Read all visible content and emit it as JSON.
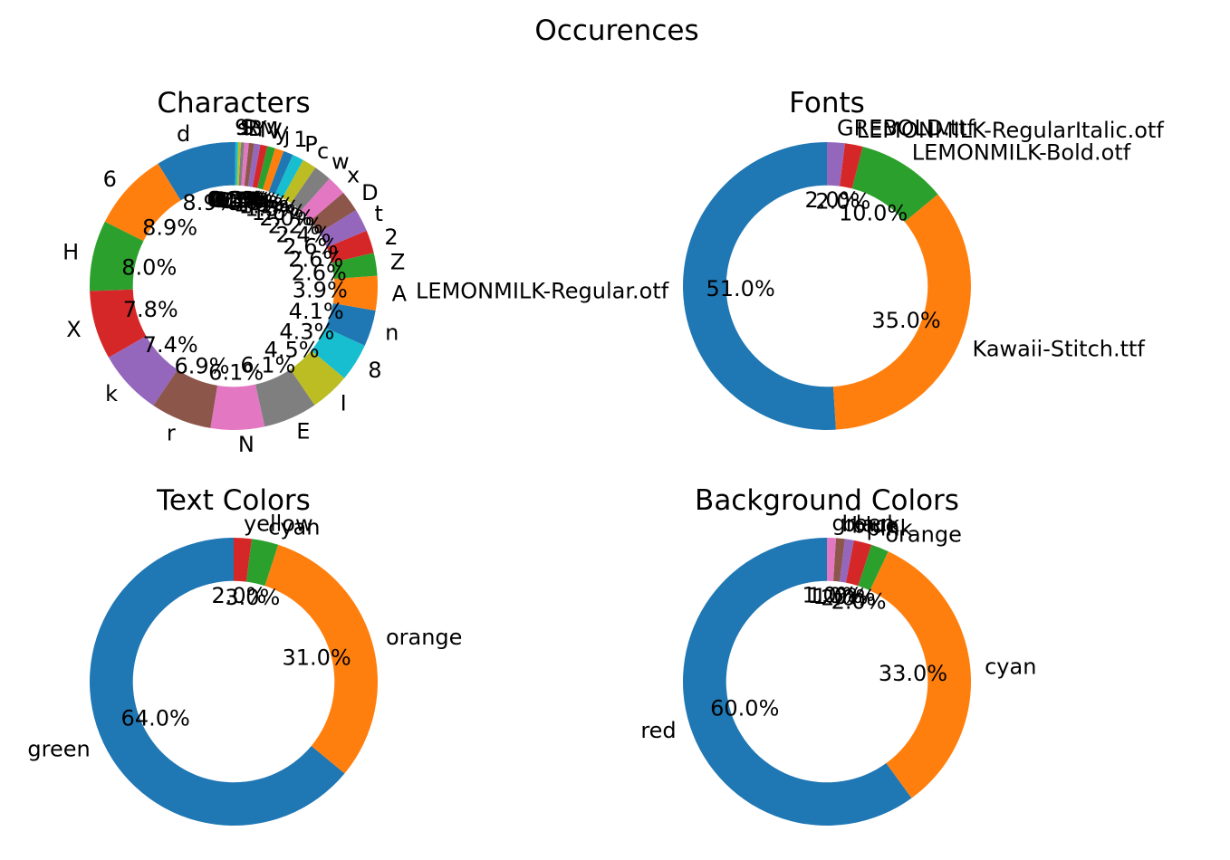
{
  "figure": {
    "title": "Occurences"
  },
  "chart_data": [
    {
      "type": "pie",
      "donut": true,
      "title": "Characters",
      "start_angle_deg": 90,
      "direction": "counterclockwise",
      "slices": [
        {
          "label": "d",
          "value": 8.9,
          "pct_label": "8.9%",
          "color": "#1f77b4"
        },
        {
          "label": "6",
          "value": 8.9,
          "pct_label": "8.9%",
          "color": "#ff7f0e"
        },
        {
          "label": "H",
          "value": 8.0,
          "pct_label": "8.0%",
          "color": "#2ca02c"
        },
        {
          "label": "X",
          "value": 7.8,
          "pct_label": "7.8%",
          "color": "#d62728"
        },
        {
          "label": "k",
          "value": 7.4,
          "pct_label": "7.4%",
          "color": "#9467bd"
        },
        {
          "label": "r",
          "value": 6.9,
          "pct_label": "6.9%",
          "color": "#8c564b"
        },
        {
          "label": "N",
          "value": 6.1,
          "pct_label": "6.1%",
          "color": "#e377c2"
        },
        {
          "label": "E",
          "value": 6.1,
          "pct_label": "6.1%",
          "color": "#7f7f7f"
        },
        {
          "label": "I",
          "value": 4.5,
          "pct_label": "4.5%",
          "color": "#bcbd22"
        },
        {
          "label": "8",
          "value": 4.3,
          "pct_label": "4.3%",
          "color": "#17becf"
        },
        {
          "label": "n",
          "value": 4.1,
          "pct_label": "4.1%",
          "color": "#1f77b4"
        },
        {
          "label": "A",
          "value": 3.9,
          "pct_label": "3.9%",
          "color": "#ff7f0e"
        },
        {
          "label": "Z",
          "value": 2.6,
          "pct_label": "2.6%",
          "color": "#2ca02c"
        },
        {
          "label": "2",
          "value": 2.6,
          "pct_label": "2.6%",
          "color": "#d62728"
        },
        {
          "label": "t",
          "value": 2.6,
          "pct_label": "2.6%",
          "color": "#9467bd"
        },
        {
          "label": "D",
          "value": 2.4,
          "pct_label": "2.4%",
          "color": "#8c564b"
        },
        {
          "label": "x",
          "value": 2.2,
          "pct_label": "2.2%",
          "color": "#e377c2"
        },
        {
          "label": "w",
          "value": 2.0,
          "pct_label": "2.0%",
          "color": "#7f7f7f"
        },
        {
          "label": "c",
          "value": 1.6,
          "pct_label": "1.6%",
          "color": "#bcbd22"
        },
        {
          "label": "P",
          "value": 1.3,
          "pct_label": "1.3%",
          "color": "#17becf"
        },
        {
          "label": "1",
          "value": 1.1,
          "pct_label": "1.1%",
          "color": "#1f77b4"
        },
        {
          "label": "j",
          "value": 1.0,
          "pct_label": "1.0%",
          "color": "#ff7f0e"
        },
        {
          "label": "y",
          "value": 0.9,
          "pct_label": "0.9%",
          "color": "#2ca02c"
        },
        {
          "label": "V",
          "value": 0.8,
          "pct_label": "0.8%",
          "color": "#d62728"
        },
        {
          "label": "M",
          "value": 0.7,
          "pct_label": "0.7%",
          "color": "#9467bd"
        },
        {
          "label": "Y",
          "value": 0.6,
          "pct_label": "0.6%",
          "color": "#8c564b"
        },
        {
          "label": "B",
          "value": 0.5,
          "pct_label": "0.5%",
          "color": "#e377c2"
        },
        {
          "label": "R",
          "value": 0.4,
          "pct_label": "0.4%",
          "color": "#7f7f7f"
        },
        {
          "label": "S",
          "value": 0.3,
          "pct_label": "0.3%",
          "color": "#bcbd22"
        },
        {
          "label": "s",
          "value": 0.3,
          "pct_label": "0.3%",
          "color": "#17becf"
        },
        {
          "label": "9",
          "value": 0.2,
          "pct_label": "0.2%",
          "color": "#1f77b4"
        }
      ]
    },
    {
      "type": "pie",
      "donut": true,
      "title": "Fonts",
      "start_angle_deg": 90,
      "direction": "counterclockwise",
      "slices": [
        {
          "label": "LEMONMILK-Regular.otf",
          "value": 51.0,
          "pct_label": "51.0%",
          "color": "#1f77b4"
        },
        {
          "label": "Kawaii-Stitch.ttf",
          "value": 35.0,
          "pct_label": "35.0%",
          "color": "#ff7f0e"
        },
        {
          "label": "LEMONMILK-Bold.otf",
          "value": 10.0,
          "pct_label": "10.0%",
          "color": "#2ca02c"
        },
        {
          "label": "LEMONMILK-RegularItalic.otf",
          "value": 2.0,
          "pct_label": "2.0%",
          "color": "#d62728"
        },
        {
          "label": "GREBOLD.ttf",
          "value": 2.0,
          "pct_label": "2.0%",
          "color": "#9467bd"
        }
      ]
    },
    {
      "type": "pie",
      "donut": true,
      "title": "Text Colors",
      "start_angle_deg": 90,
      "direction": "counterclockwise",
      "slices": [
        {
          "label": "green",
          "value": 64.0,
          "pct_label": "64.0%",
          "color": "#1f77b4"
        },
        {
          "label": "orange",
          "value": 31.0,
          "pct_label": "31.0%",
          "color": "#ff7f0e"
        },
        {
          "label": "cyan",
          "value": 3.0,
          "pct_label": "3.0%",
          "color": "#2ca02c"
        },
        {
          "label": "yellow",
          "value": 2.0,
          "pct_label": "2.0%",
          "color": "#d62728"
        }
      ]
    },
    {
      "type": "pie",
      "donut": true,
      "title": "Background Colors",
      "start_angle_deg": 90,
      "direction": "counterclockwise",
      "slices": [
        {
          "label": "red",
          "value": 60.0,
          "pct_label": "60.0%",
          "color": "#1f77b4"
        },
        {
          "label": "cyan",
          "value": 33.0,
          "pct_label": "33.0%",
          "color": "#ff7f0e"
        },
        {
          "label": "orange",
          "value": 2.0,
          "pct_label": "2.0%",
          "color": "#2ca02c"
        },
        {
          "label": "pink",
          "value": 2.0,
          "pct_label": "2.0%",
          "color": "#d62728"
        },
        {
          "label": "blue",
          "value": 1.0,
          "pct_label": "1.0%",
          "color": "#9467bd"
        },
        {
          "label": "black",
          "value": 1.0,
          "pct_label": "1.0%",
          "color": "#8c564b"
        },
        {
          "label": "green",
          "value": 1.0,
          "pct_label": "1.0%",
          "color": "#e377c2"
        }
      ]
    }
  ]
}
